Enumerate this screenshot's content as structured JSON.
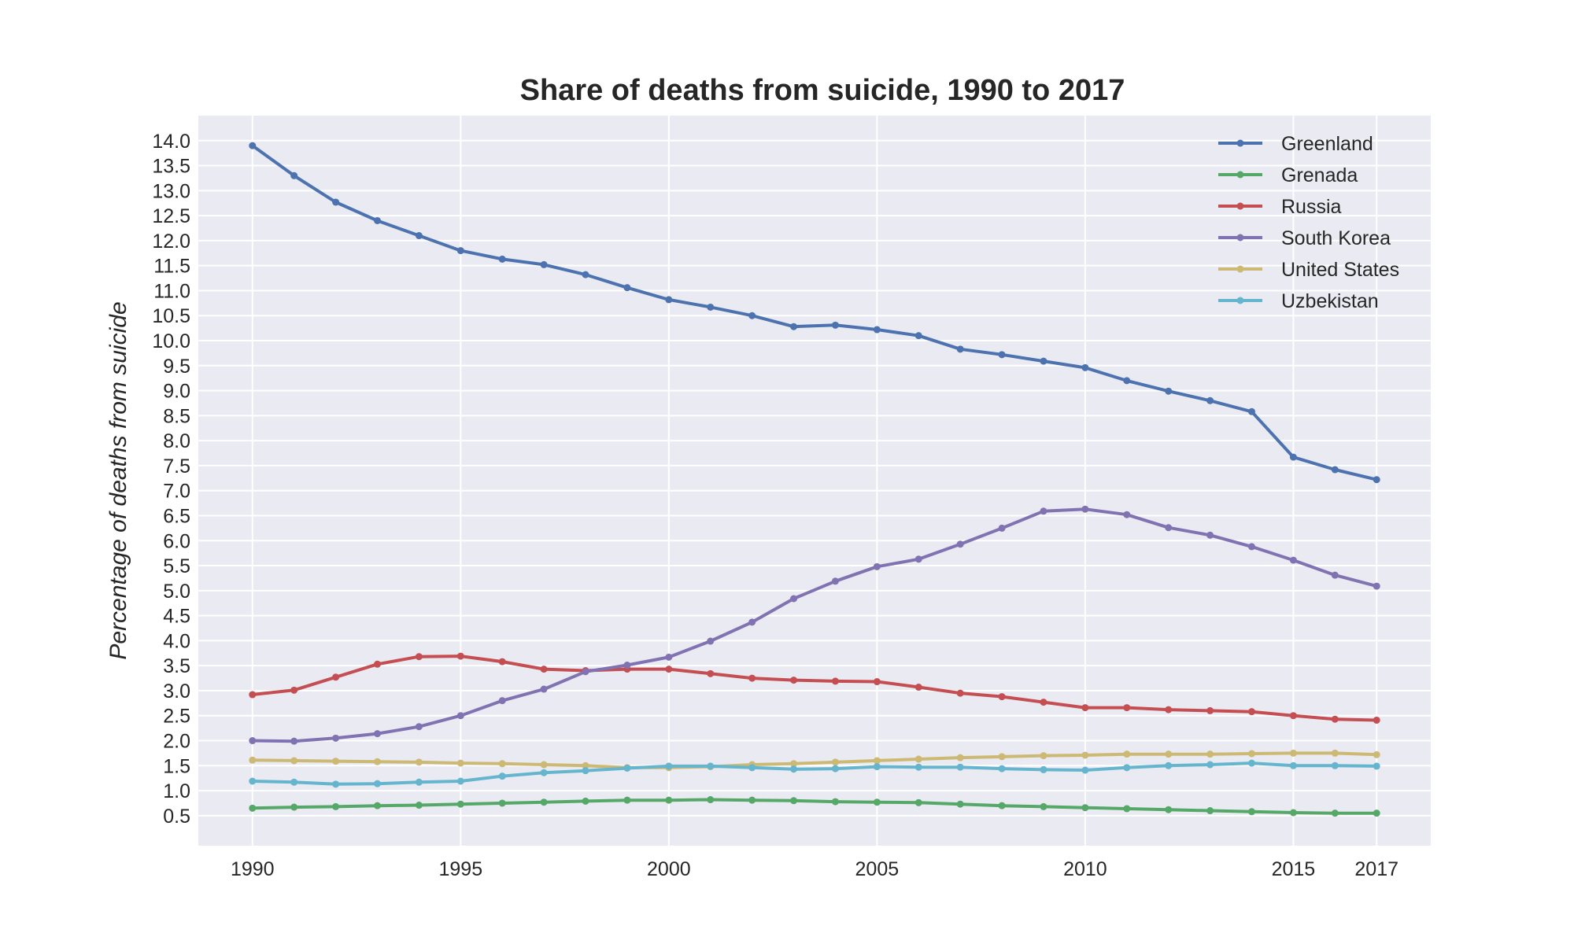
{
  "chart_data": {
    "type": "line",
    "title": "Share of deaths from suicide, 1990 to 2017",
    "xlabel": "",
    "ylabel": "Percentage of deaths from suicide",
    "x": [
      1990,
      1991,
      1992,
      1993,
      1994,
      1995,
      1996,
      1997,
      1998,
      1999,
      2000,
      2001,
      2002,
      2003,
      2004,
      2005,
      2006,
      2007,
      2008,
      2009,
      2010,
      2011,
      2012,
      2013,
      2014,
      2015,
      2016,
      2017
    ],
    "xticks": [
      "1990",
      "1995",
      "2000",
      "2005",
      "2010",
      "2015",
      "2017"
    ],
    "yticks": [
      "0.5",
      "1.0",
      "1.5",
      "2.0",
      "2.5",
      "3.0",
      "3.5",
      "4.0",
      "4.5",
      "5.0",
      "5.5",
      "6.0",
      "6.5",
      "7.0",
      "7.5",
      "8.0",
      "8.5",
      "9.0",
      "9.5",
      "10.0",
      "10.5",
      "11.0",
      "11.5",
      "12.0",
      "12.5",
      "13.0",
      "13.5",
      "14.0"
    ],
    "xlim": [
      1988.7,
      2018.3
    ],
    "ylim": [
      -0.1,
      14.5
    ],
    "grid": true,
    "legend_position": "top-right",
    "series": [
      {
        "name": "Greenland",
        "color": "#4c72b0",
        "values": [
          13.9,
          13.3,
          12.77,
          12.4,
          12.1,
          11.8,
          11.63,
          11.52,
          11.32,
          11.06,
          10.82,
          10.67,
          10.5,
          10.28,
          10.31,
          10.22,
          10.1,
          9.83,
          9.72,
          9.59,
          9.46,
          9.2,
          8.99,
          8.8,
          8.58,
          7.67,
          7.42,
          7.22
        ]
      },
      {
        "name": "Grenada",
        "color": "#55a868",
        "values": [
          0.65,
          0.67,
          0.68,
          0.7,
          0.71,
          0.73,
          0.75,
          0.77,
          0.79,
          0.81,
          0.81,
          0.82,
          0.81,
          0.8,
          0.78,
          0.77,
          0.76,
          0.73,
          0.7,
          0.68,
          0.66,
          0.64,
          0.62,
          0.6,
          0.58,
          0.56,
          0.55,
          0.55
        ]
      },
      {
        "name": "Russia",
        "color": "#c44e52",
        "values": [
          2.92,
          3.01,
          3.27,
          3.53,
          3.68,
          3.69,
          3.58,
          3.43,
          3.4,
          3.43,
          3.43,
          3.34,
          3.25,
          3.21,
          3.19,
          3.18,
          3.07,
          2.95,
          2.88,
          2.77,
          2.66,
          2.66,
          2.62,
          2.6,
          2.58,
          2.5,
          2.43,
          2.41
        ]
      },
      {
        "name": "South Korea",
        "color": "#8172b2",
        "values": [
          2.0,
          1.99,
          2.05,
          2.14,
          2.28,
          2.5,
          2.8,
          3.03,
          3.38,
          3.51,
          3.67,
          3.99,
          4.37,
          4.84,
          5.19,
          5.48,
          5.63,
          5.93,
          6.25,
          6.59,
          6.63,
          6.52,
          6.26,
          6.11,
          5.88,
          5.61,
          5.31,
          5.09
        ]
      },
      {
        "name": "United States",
        "color": "#ccb974",
        "values": [
          1.61,
          1.6,
          1.59,
          1.58,
          1.57,
          1.55,
          1.54,
          1.52,
          1.5,
          1.46,
          1.46,
          1.48,
          1.52,
          1.54,
          1.57,
          1.6,
          1.63,
          1.66,
          1.68,
          1.7,
          1.71,
          1.73,
          1.73,
          1.73,
          1.74,
          1.75,
          1.75,
          1.72
        ]
      },
      {
        "name": "Uzbekistan",
        "color": "#64b5cd",
        "values": [
          1.19,
          1.17,
          1.13,
          1.14,
          1.17,
          1.19,
          1.29,
          1.36,
          1.4,
          1.45,
          1.49,
          1.49,
          1.46,
          1.43,
          1.44,
          1.48,
          1.47,
          1.47,
          1.44,
          1.42,
          1.41,
          1.46,
          1.5,
          1.52,
          1.55,
          1.5,
          1.5,
          1.49
        ]
      }
    ]
  }
}
